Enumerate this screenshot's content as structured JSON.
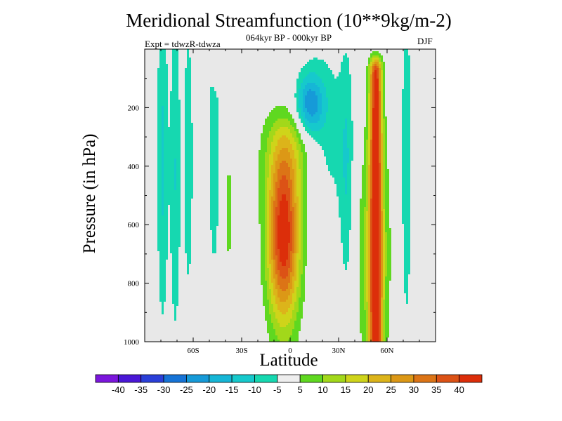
{
  "title": "Meridional Streamfunction (10**9kg/m-2)",
  "subtitle": "064kyr BP - 000kyr BP",
  "left_label": "Expt = tdwzR-tdwza",
  "right_label": "DJF",
  "colors": {
    "background": "#e8e8e8",
    "palette": [
      "#7b16dc",
      "#4a17d6",
      "#2a3fd8",
      "#1673d6",
      "#169ad8",
      "#16b6d6",
      "#16c9cc",
      "#16d8b0",
      "#eeeeee",
      "#5fd820",
      "#a2d81a",
      "#cfd41a",
      "#dcb41a",
      "#dc9816",
      "#dc7416",
      "#dc5216",
      "#dc2e0a"
    ]
  },
  "chart_data": {
    "type": "heatmap",
    "title": "Meridional Streamfunction (10**9kg/m-2)",
    "subtitle": "064kyr BP - 000kyr BP",
    "annotations": [
      "Expt = tdwzR-tdwza",
      "DJF"
    ],
    "xlabel": "Latitude",
    "ylabel": "Pressure (in hPa)",
    "x_range": [
      -90,
      90
    ],
    "y_range": [
      0,
      1000
    ],
    "y_inverted": true,
    "x_ticks": [
      {
        "v": -60,
        "label": "60S"
      },
      {
        "v": -30,
        "label": "30S"
      },
      {
        "v": 0,
        "label": "0"
      },
      {
        "v": 30,
        "label": "30N"
      },
      {
        "v": 60,
        "label": "60N"
      }
    ],
    "y_ticks": [
      {
        "v": 200,
        "label": "200"
      },
      {
        "v": 400,
        "label": "400"
      },
      {
        "v": 600,
        "label": "600"
      },
      {
        "v": 800,
        "label": "800"
      },
      {
        "v": 1000,
        "label": "1000"
      }
    ],
    "colorbar_labels": [
      "-40",
      "-35",
      "-30",
      "-25",
      "-20",
      "-15",
      "-10",
      "-5",
      "5",
      "10",
      "15",
      "20",
      "25",
      "30",
      "35",
      "40"
    ],
    "levels": [
      -40,
      -35,
      -30,
      -25,
      -20,
      -15,
      -10,
      -5,
      5,
      10,
      15,
      20,
      25,
      30,
      35,
      40
    ],
    "features": [
      {
        "name": "equatorial positive cell",
        "center": [
          -4,
          640
        ],
        "peak": 45
      },
      {
        "name": "mid-latitude positive column",
        "center": [
          53,
          500
        ],
        "peak": 40
      },
      {
        "name": "upper tropospheric negative pocket",
        "center": [
          12,
          200
        ],
        "peak": -20
      },
      {
        "name": "southern negative columns",
        "center": [
          -78,
          420
        ],
        "peak": -10
      }
    ],
    "grid": false,
    "legend": "horizontal colorbar below plot"
  }
}
